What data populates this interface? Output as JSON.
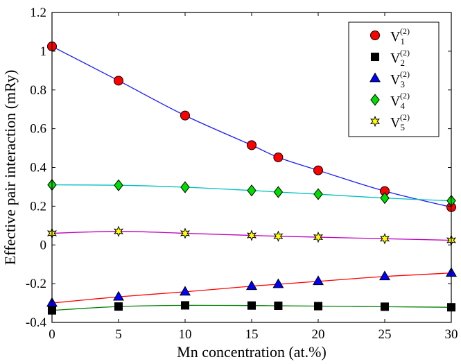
{
  "chart_data": {
    "type": "line",
    "xlabel": "Mn concentration (at.%)",
    "ylabel": "Effective pair interaction (mRy)",
    "xlim": [
      0,
      30
    ],
    "ylim": [
      -0.4,
      1.2
    ],
    "x_ticks": [
      0,
      5,
      10,
      15,
      20,
      25,
      30
    ],
    "x_tick_labels": [
      "0",
      "5",
      "10",
      "15",
      "20",
      "25",
      "30"
    ],
    "y_ticks": [
      -0.4,
      -0.2,
      0,
      0.2,
      0.4,
      0.6,
      0.8,
      1.0,
      1.2
    ],
    "y_tick_labels": [
      "-0.4",
      "-0.2",
      "0",
      "0.2",
      "0.4",
      "0.6",
      "0.8",
      "1",
      "1.2"
    ],
    "legend_position": "top-right",
    "x": [
      0,
      5,
      10,
      15,
      17,
      20,
      25,
      30
    ],
    "series": [
      {
        "name": "V",
        "subscript": "1",
        "superscript": "(2)",
        "marker": "circle",
        "marker_color": "#ff0000",
        "line_color": "#1a1aff",
        "values": [
          1.025,
          0.848,
          0.668,
          0.515,
          0.452,
          0.385,
          0.278,
          0.195
        ]
      },
      {
        "name": "V",
        "subscript": "2",
        "superscript": "(2)",
        "marker": "square",
        "marker_color": "#000000",
        "line_color": "#008000",
        "values": [
          -0.338,
          -0.318,
          -0.312,
          -0.313,
          -0.314,
          -0.316,
          -0.319,
          -0.322
        ]
      },
      {
        "name": "V",
        "subscript": "3",
        "superscript": "(2)",
        "marker": "triangle",
        "marker_color": "#0000ff",
        "line_color": "#ff0000",
        "values": [
          -0.3,
          -0.268,
          -0.242,
          -0.213,
          -0.203,
          -0.188,
          -0.163,
          -0.145
        ]
      },
      {
        "name": "V",
        "subscript": "4",
        "superscript": "(2)",
        "marker": "diamond",
        "marker_color": "#00dd00",
        "line_color": "#00bfbf",
        "values": [
          0.31,
          0.308,
          0.298,
          0.281,
          0.273,
          0.262,
          0.242,
          0.228
        ]
      },
      {
        "name": "V",
        "subscript": "5",
        "superscript": "(2)",
        "marker": "star",
        "marker_color": "#ffff00",
        "line_color": "#bf00bf",
        "values": [
          0.06,
          0.07,
          0.06,
          0.049,
          0.045,
          0.04,
          0.032,
          0.024
        ]
      }
    ]
  }
}
